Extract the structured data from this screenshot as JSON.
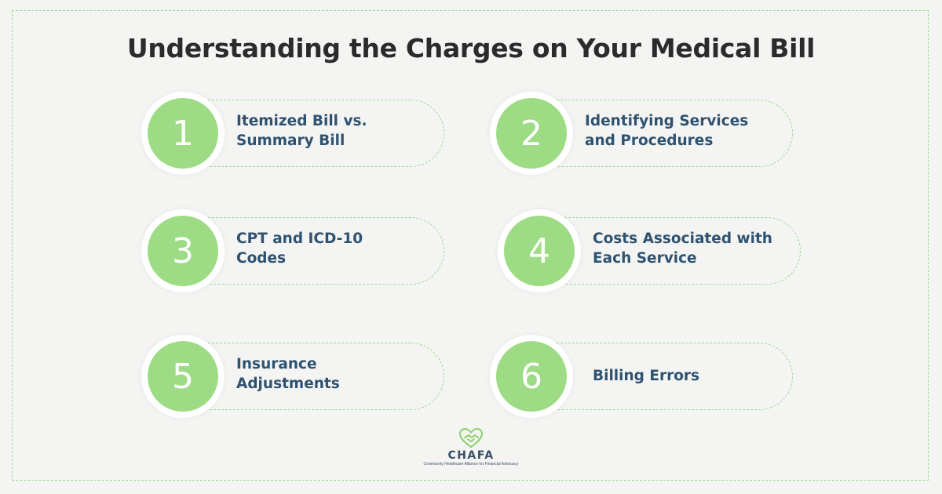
{
  "title": "Understanding the Charges on Your Medical Bill",
  "items": [
    {
      "number": "1",
      "label": "Itemized Bill vs.\nSummary Bill"
    },
    {
      "number": "2",
      "label": "Identifying Services\nand Procedures"
    },
    {
      "number": "3",
      "label": "CPT and ICD-10\nCodes"
    },
    {
      "number": "4",
      "label": "Costs Associated with\nEach Service"
    },
    {
      "number": "5",
      "label": "Insurance\nAdjustments"
    },
    {
      "number": "6",
      "label": "Billing Errors"
    }
  ],
  "logo": {
    "name": "CHAFA",
    "tagline": "Community Healthcare Alliance for Financial Advocacy",
    "icon": "handshake-heart-icon"
  },
  "colors": {
    "accent_green": "#9ddc84",
    "label_blue": "#2e5270",
    "title_dark": "#2b2b2b",
    "dashed_border": "#9fd68f"
  }
}
